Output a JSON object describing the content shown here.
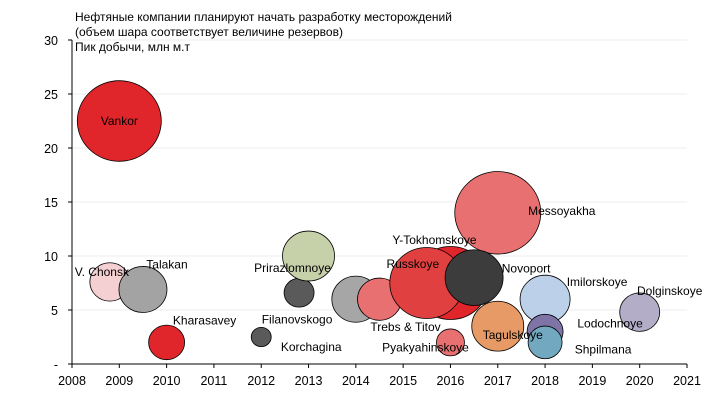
{
  "chart_data": {
    "type": "scatter",
    "title": "Нефтяные компании планируют начать разработку месторождений",
    "subtitle": "(объем шара соответствует величине резервов)",
    "ylabel": "Пик добычи, млн м.т",
    "xlabel": "",
    "xlim": [
      2008,
      2021
    ],
    "ylim": [
      0,
      30
    ],
    "xticks": [
      "2008",
      "2009",
      "2010",
      "2011",
      "2012",
      "2013",
      "2014",
      "2015",
      "2016",
      "2017",
      "2018",
      "2019",
      "2020",
      "2021"
    ],
    "yticks": [
      "-",
      "5",
      "10",
      "15",
      "20",
      "25",
      "30"
    ],
    "grid": "horizontal",
    "points": [
      {
        "label": "Vankor",
        "x": 2009.0,
        "y": 22.5,
        "size": 42,
        "color": "#e0262a"
      },
      {
        "label": "V. Chonsk",
        "x": 2008.8,
        "y": 7.6,
        "size": 20,
        "color": "#f5d0d2"
      },
      {
        "label": "Talakan",
        "x": 2009.5,
        "y": 6.9,
        "size": 24,
        "color": "#a3a3a3"
      },
      {
        "label": "Kharasavey",
        "x": 2010.0,
        "y": 2.0,
        "size": 18,
        "color": "#e0262a"
      },
      {
        "label": "Korchagina",
        "x": 2012.0,
        "y": 2.5,
        "size": 10,
        "color": "#5a5a5a"
      },
      {
        "label": "Filanovskogo",
        "x": 2012.8,
        "y": 6.6,
        "size": 15,
        "color": "#5a5a5a"
      },
      {
        "label": "Prirazlomnoye",
        "x": 2013.0,
        "y": 10.0,
        "size": 26,
        "color": "#c6d0a9"
      },
      {
        "label": "",
        "x": 2014.0,
        "y": 6.0,
        "size": 24,
        "color": "#a6a6a6"
      },
      {
        "label": "Trebs & Titov",
        "x": 2014.5,
        "y": 6.0,
        "size": 22,
        "color": "#e87070"
      },
      {
        "label": "Messoyakha",
        "x": 2017.0,
        "y": 14.0,
        "size": 43,
        "color": "#e87070"
      },
      {
        "label": "Y-Tokhomskoye",
        "x": 2016.0,
        "y": 7.5,
        "size": 38,
        "color": "#e0262a"
      },
      {
        "label": "Russkoye",
        "x": 2015.5,
        "y": 7.5,
        "size": 37,
        "color": "#e04040"
      },
      {
        "label": "Novoport",
        "x": 2016.5,
        "y": 8.0,
        "size": 29,
        "color": "#3c3c3c"
      },
      {
        "label": "Pyakyahinskoye",
        "x": 2016.0,
        "y": 2.0,
        "size": 14,
        "color": "#e87070"
      },
      {
        "label": "Tagulskoye",
        "x": 2017.0,
        "y": 3.5,
        "size": 26,
        "color": "#e89a66"
      },
      {
        "label": "Imilorskoye",
        "x": 2018.0,
        "y": 6.0,
        "size": 25,
        "color": "#bcd0ea"
      },
      {
        "label": "Lodochnoye",
        "x": 2018.0,
        "y": 3.0,
        "size": 18,
        "color": "#7f74a6"
      },
      {
        "label": "Shpilmana",
        "x": 2018.0,
        "y": 2.0,
        "size": 17,
        "color": "#72a9c0"
      },
      {
        "label": "Dolginskoye",
        "x": 2020.0,
        "y": 4.8,
        "size": 20,
        "color": "#b3adc8"
      }
    ]
  }
}
